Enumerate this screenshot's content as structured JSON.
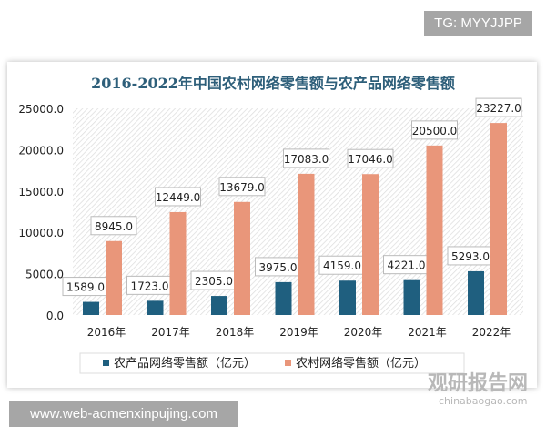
{
  "watermark_top": "TG: MYYJJPP",
  "watermark_bottom": "www.web-aomenxinpujing.com",
  "logo_watermark": {
    "name": "观研报告网",
    "url": "chinabaogao.com"
  },
  "chart_data": {
    "type": "bar",
    "title": "2016-2022年中国农村网络零售额与农产品网络零售额",
    "categories": [
      "2016年",
      "2017年",
      "2018年",
      "2019年",
      "2020年",
      "2021年",
      "2022年"
    ],
    "ylim": [
      0,
      25000
    ],
    "yticks": [
      "0.0",
      "5000.0",
      "10000.0",
      "15000.0",
      "20000.0",
      "25000.0"
    ],
    "legend_position": "bottom",
    "series": [
      {
        "name": "农产品网络零售额（亿元）",
        "color": "#1f5f7f",
        "values": [
          1589.0,
          1723.0,
          2305.0,
          3975.0,
          4159.0,
          4221.0,
          5293.0
        ],
        "labels": [
          "1589.0",
          "1723.0",
          "2305.0",
          "3975.0",
          "4159.0",
          "4221.0",
          "5293.0"
        ]
      },
      {
        "name": "农村网络零售额（亿元）",
        "color": "#e9967a",
        "values": [
          8945.0,
          12449.0,
          13679.0,
          17083.0,
          17046.0,
          20500.0,
          23227.0
        ],
        "labels": [
          "8945.0",
          "12449.0",
          "13679.0",
          "17083.0",
          "17046.0",
          "20500.0",
          "23227.0"
        ]
      }
    ]
  }
}
